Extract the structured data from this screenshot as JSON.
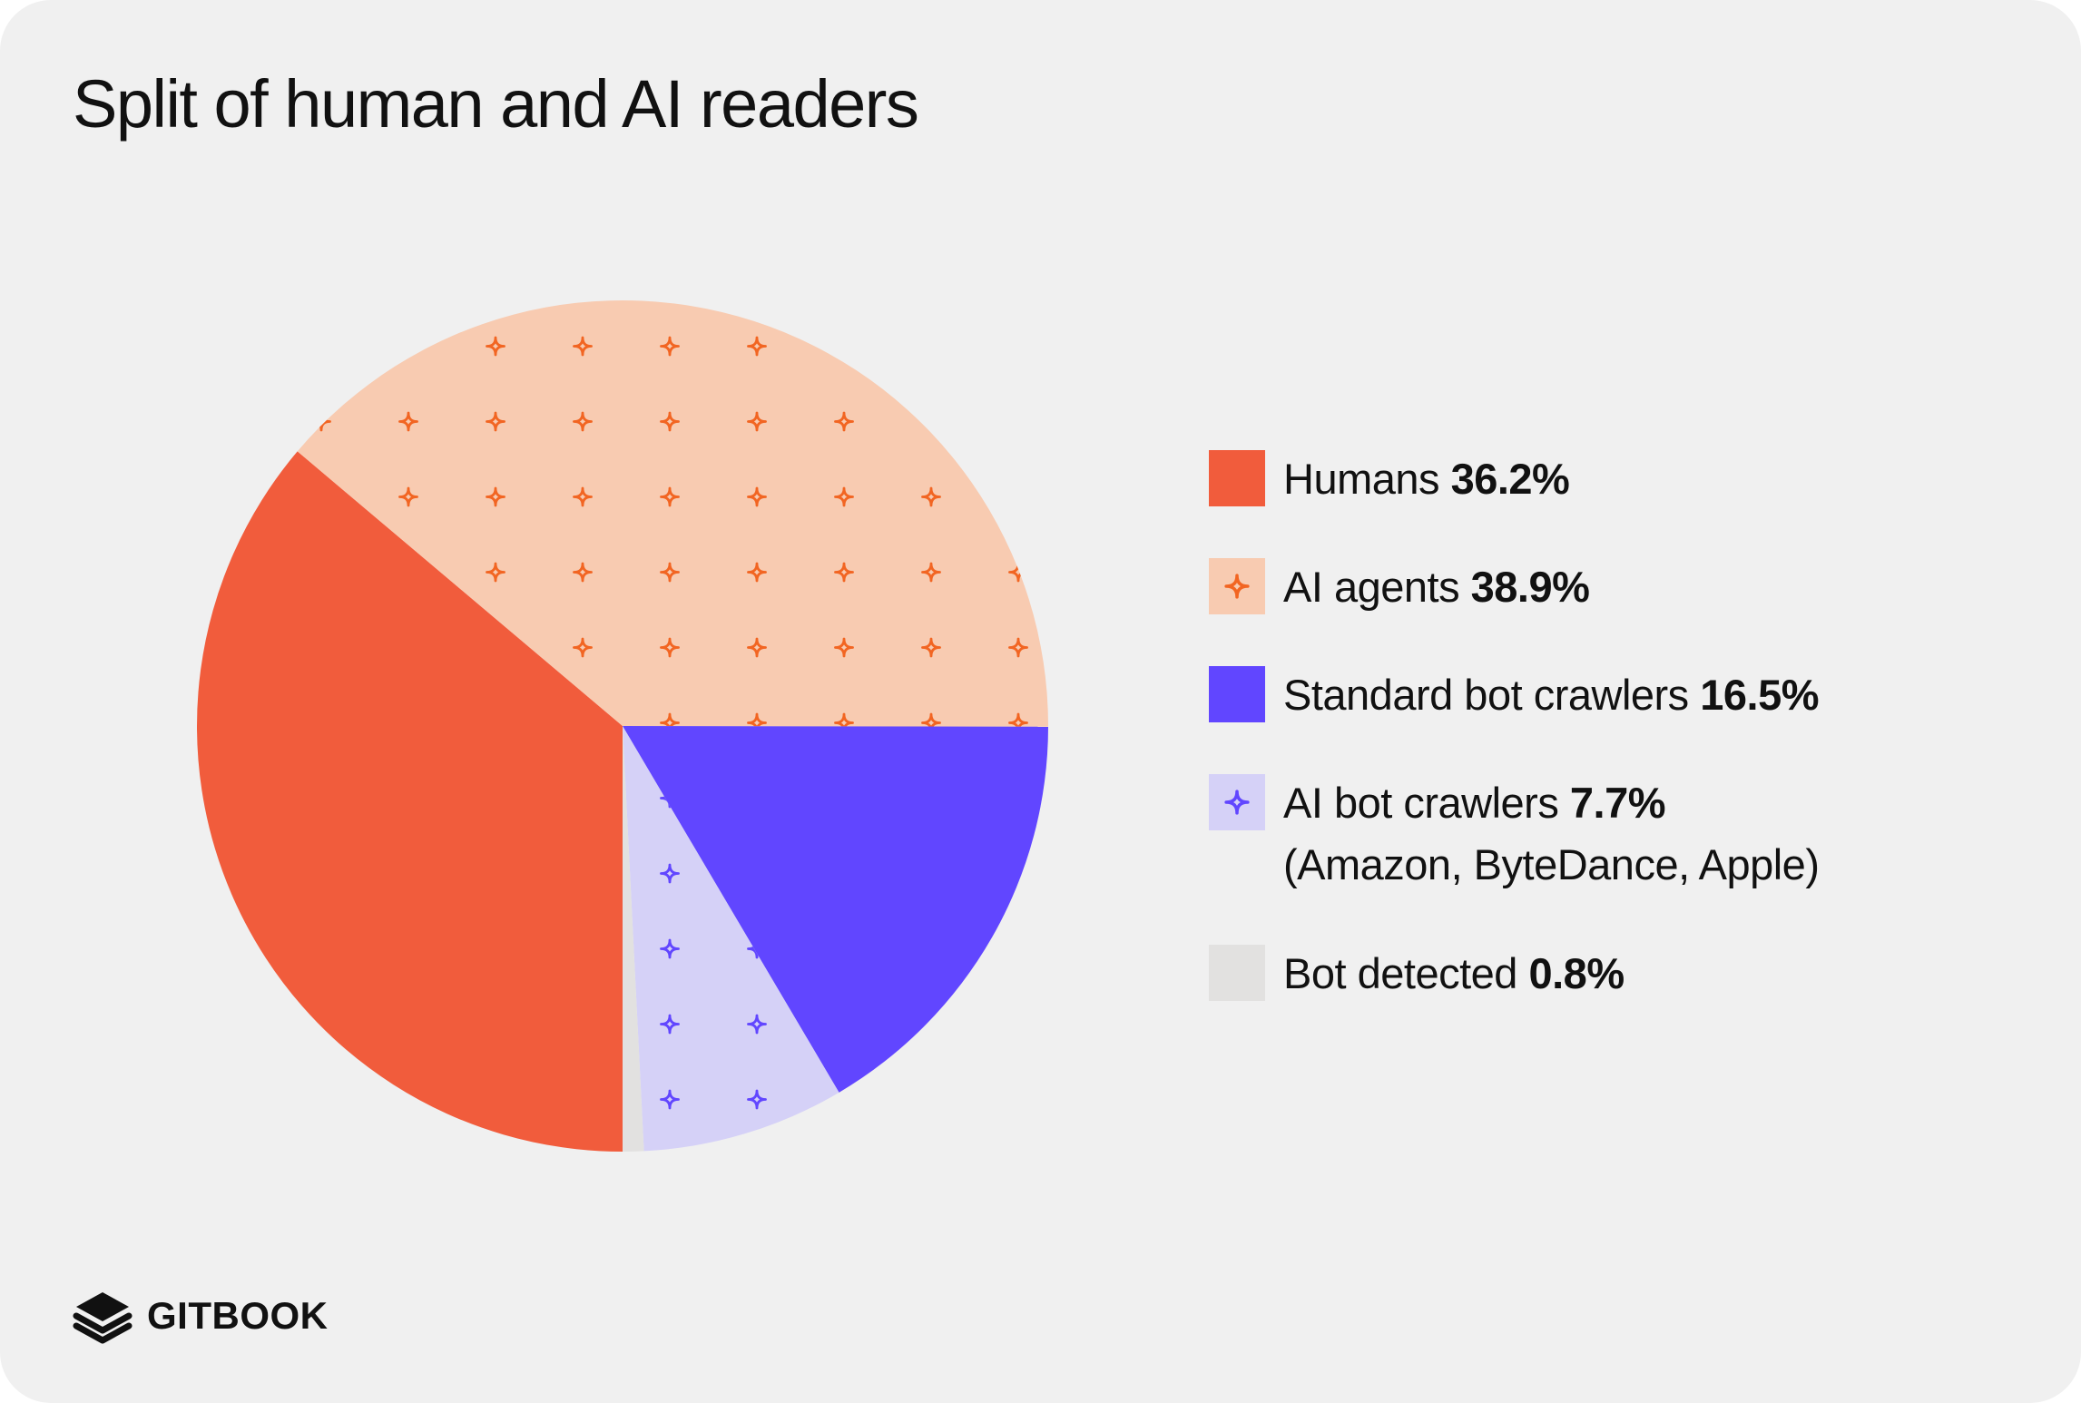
{
  "header": {
    "title": "Split of human and AI readers"
  },
  "chart_data": {
    "type": "pie",
    "title": "Split of human and AI readers",
    "unit": "%",
    "slices": [
      {
        "label": "Humans",
        "value": 36.2,
        "value_label": "36.2%",
        "color": "#f15c3c",
        "pattern": "none",
        "pattern_color": ""
      },
      {
        "label": "AI agents",
        "value": 38.9,
        "value_label": "38.9%",
        "color": "#f8cbb1",
        "pattern": "sparkle",
        "pattern_color": "#f26522"
      },
      {
        "label": "Standard bot crawlers",
        "value": 16.5,
        "value_label": "16.5%",
        "color": "#6146ff",
        "pattern": "none",
        "pattern_color": ""
      },
      {
        "label": "AI bot crawlers",
        "value": 7.7,
        "value_label": "7.7%",
        "note": "(Amazon, ByteDance, Apple)",
        "color": "#d5d1f7",
        "pattern": "sparkle",
        "pattern_color": "#6146ff"
      },
      {
        "label": "Bot detected",
        "value": 0.8,
        "value_label": "0.8%",
        "color": "#e2e1e0",
        "pattern": "none",
        "pattern_color": ""
      }
    ],
    "legend_position": "right"
  },
  "brand": {
    "name": "GITBOOK",
    "icon": "gitbook-logo-icon"
  },
  "colors": {
    "background": "#f0f0f0",
    "text": "#111111"
  }
}
